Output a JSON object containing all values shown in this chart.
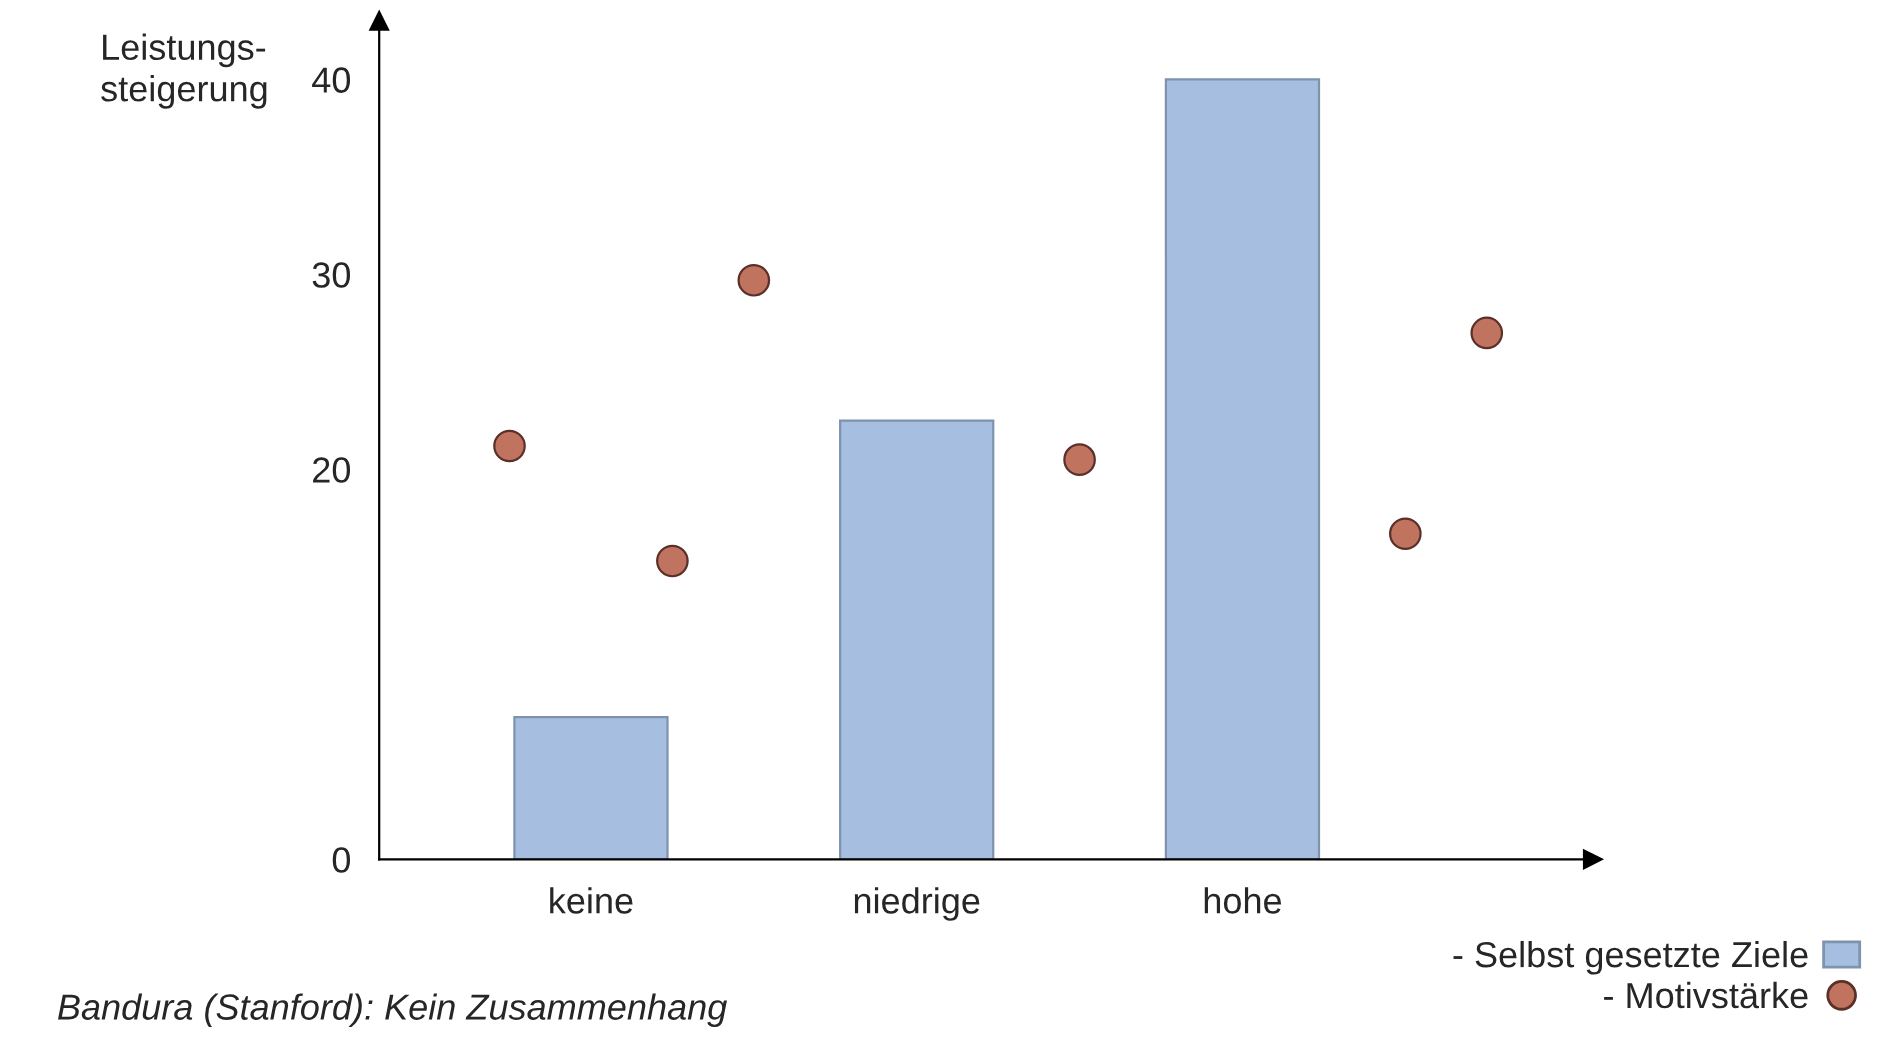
{
  "chart_data": {
    "type": "bar",
    "ylabel": "Leistungs-\nsteigerung",
    "categories": [
      null,
      "keine",
      null,
      null,
      null,
      "niedrige",
      null,
      null,
      null,
      "hohe",
      null,
      null,
      null
    ],
    "series": [
      {
        "name": "- Selbst gesetzte Ziele",
        "color": "#a6bfe0",
        "values": [
          null,
          7.3,
          null,
          null,
          null,
          22.5,
          null,
          null,
          null,
          40,
          null,
          null,
          null
        ]
      },
      {
        "name": "- Motivstärke",
        "type": "scatter",
        "color": "#c0735f",
        "values": [
          21.2,
          null,
          15.3,
          29.7,
          null,
          null,
          null,
          20.5,
          null,
          null,
          null,
          16.7,
          27.0
        ]
      }
    ],
    "ylim": [
      0,
      43
    ],
    "yticks": [
      0,
      20,
      30,
      40
    ],
    "grid": false,
    "legend": "bottom right",
    "marker": "circle",
    "annotations": [
      "Bandura (Stanford): Kein Zusammenhang"
    ]
  }
}
